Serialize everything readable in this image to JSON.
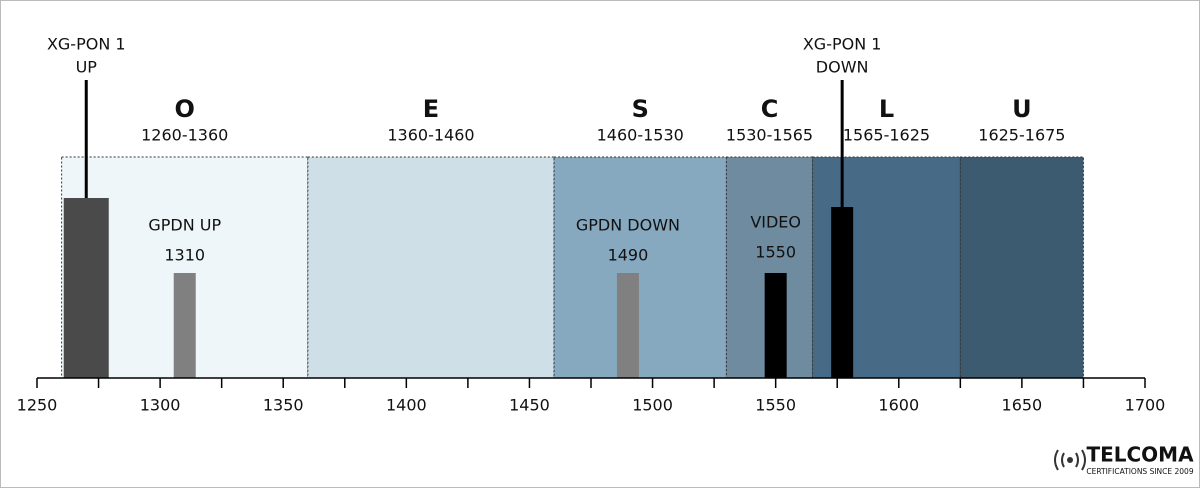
{
  "axis": {
    "xlim": [
      1250,
      1700
    ],
    "xticks": [
      1250,
      1300,
      1350,
      1400,
      1450,
      1500,
      1550,
      1600,
      1650,
      1700
    ],
    "minor_xticks": [
      1275,
      1325,
      1375,
      1425,
      1475,
      1525,
      1575,
      1625,
      1675
    ]
  },
  "bands": [
    {
      "letter": "O",
      "range": "1260-1360",
      "start": 1260,
      "end": 1360,
      "color": "#eef6f9"
    },
    {
      "letter": "E",
      "range": "1360-1460",
      "start": 1360,
      "end": 1460,
      "color": "#cfdfe8"
    },
    {
      "letter": "S",
      "range": "1460-1530",
      "start": 1460,
      "end": 1530,
      "color": "#87a9c0"
    },
    {
      "letter": "C",
      "range": "1530-1565",
      "start": 1530,
      "end": 1565,
      "color": "#6e8ba0"
    },
    {
      "letter": "L",
      "range": "1565-1625",
      "start": 1565,
      "end": 1625,
      "color": "#476b87"
    },
    {
      "letter": "U",
      "range": "1625-1675",
      "start": 1625,
      "end": 1675,
      "color": "#3d5b70"
    }
  ],
  "signals": [
    {
      "name_lines": [
        "XG-PON 1",
        "UP"
      ],
      "wavelength": 1270,
      "color": "#4a4a4a"
    },
    {
      "name_lines": [
        "GPDN UP"
      ],
      "wavelength": 1310,
      "color": "#808080"
    },
    {
      "name_lines": [
        "GPDN DOWN"
      ],
      "wavelength": 1490,
      "color": "#808080"
    },
    {
      "name_lines": [
        "VIDEO"
      ],
      "wavelength": 1550,
      "color": "#000000"
    },
    {
      "name_lines": [
        "XG-PON 1",
        "DOWN"
      ],
      "wavelength": 1577,
      "color": "#000000"
    }
  ],
  "logo": {
    "name": "TELCOMA",
    "tagline": "CERTIFICATIONS SINCE 2009"
  }
}
